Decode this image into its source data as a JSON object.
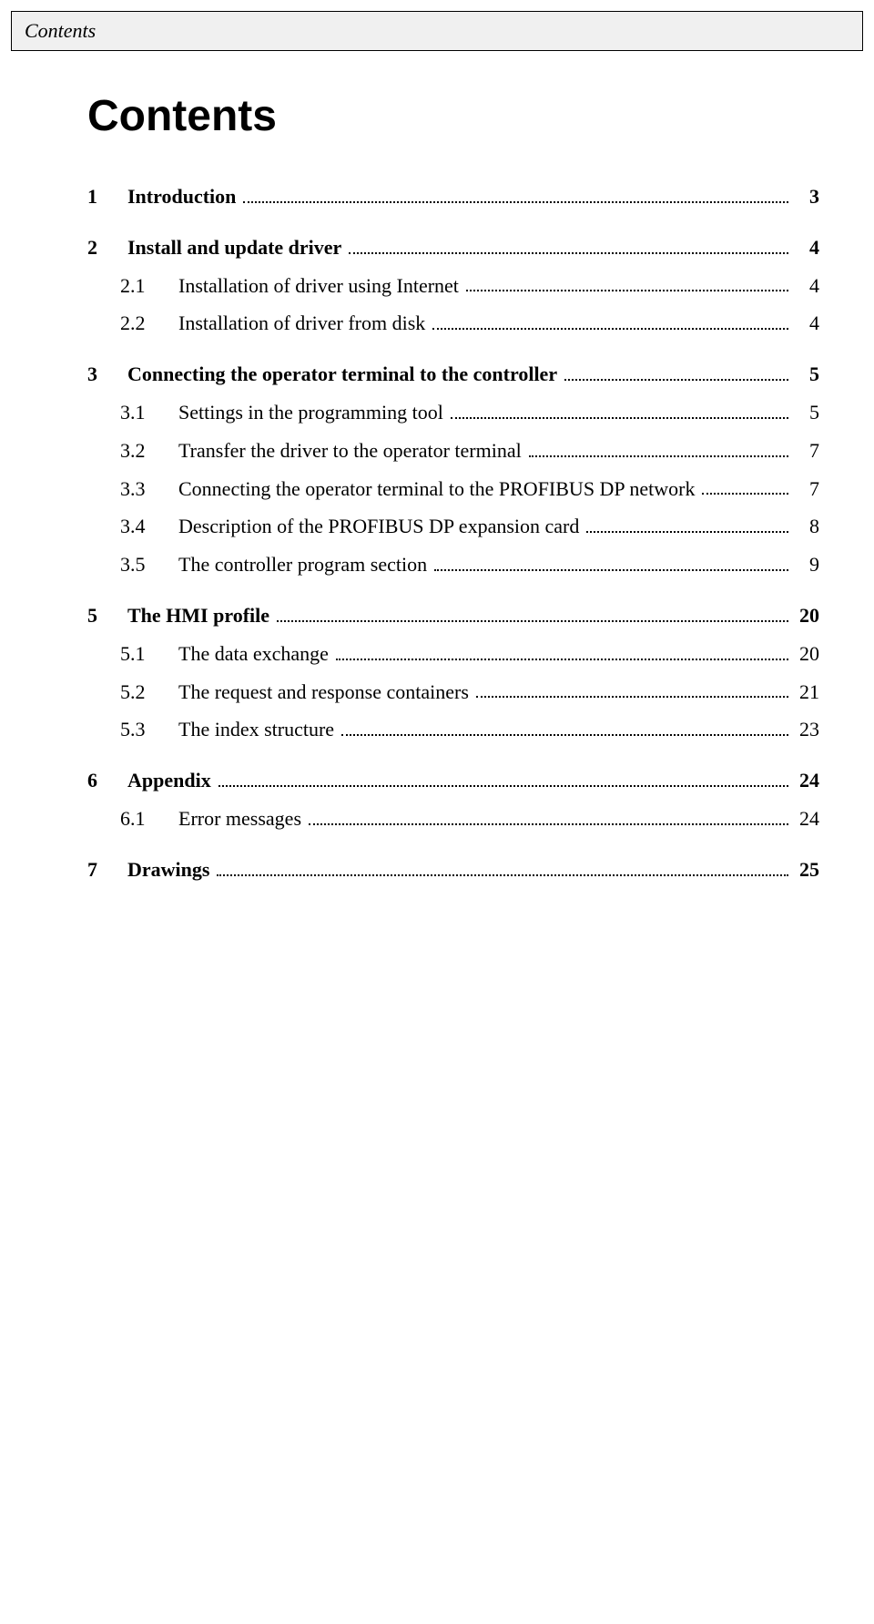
{
  "header": "Contents",
  "title": "Contents",
  "colors": {
    "background": "#ffffff",
    "text": "#000000",
    "header_bg": "#f0f0f0",
    "border": "#000000",
    "leader": "#000000"
  },
  "typography": {
    "title_font": "Segoe UI, Lucida Sans, Arial, sans-serif",
    "body_font": "Georgia, Times New Roman, serif",
    "title_size_pt": 36,
    "body_size_pt": 17,
    "header_italic": true
  },
  "toc": [
    {
      "type": "section",
      "num": "1",
      "label": "Introduction",
      "page": "3"
    },
    {
      "type": "section",
      "num": "2",
      "label": "Install and update driver",
      "page": "4"
    },
    {
      "type": "subsection",
      "num": "2.1",
      "label": "Installation of driver using Internet",
      "page": "4"
    },
    {
      "type": "subsection",
      "num": "2.2",
      "label": "Installation of driver from disk",
      "page": "4"
    },
    {
      "type": "section",
      "num": "3",
      "label": "Connecting the operator terminal to the controller",
      "page": "5"
    },
    {
      "type": "subsection",
      "num": "3.1",
      "label": "Settings in the programming tool",
      "page": "5"
    },
    {
      "type": "subsection",
      "num": "3.2",
      "label": "Transfer the driver to the operator terminal",
      "page": "7"
    },
    {
      "type": "subsection",
      "num": "3.3",
      "label": "Connecting the operator terminal to the PROFIBUS DP network",
      "page": "7"
    },
    {
      "type": "subsection",
      "num": "3.4",
      "label": "Description of the PROFIBUS DP expansion card",
      "page": "8"
    },
    {
      "type": "subsection",
      "num": "3.5",
      "label": "The controller program section",
      "page": "9"
    },
    {
      "type": "section",
      "num": "5",
      "label": "The HMI profile",
      "page": "20"
    },
    {
      "type": "subsection",
      "num": "5.1",
      "label": "The data exchange",
      "page": "20"
    },
    {
      "type": "subsection",
      "num": "5.2",
      "label": "The request and response containers",
      "page": "21"
    },
    {
      "type": "subsection",
      "num": "5.3",
      "label": "The index structure",
      "page": "23"
    },
    {
      "type": "section",
      "num": "6",
      "label": "Appendix",
      "page": "24"
    },
    {
      "type": "subsection",
      "num": "6.1",
      "label": "Error messages",
      "page": "24"
    },
    {
      "type": "section",
      "num": "7",
      "label": "Drawings",
      "page": "25"
    }
  ]
}
